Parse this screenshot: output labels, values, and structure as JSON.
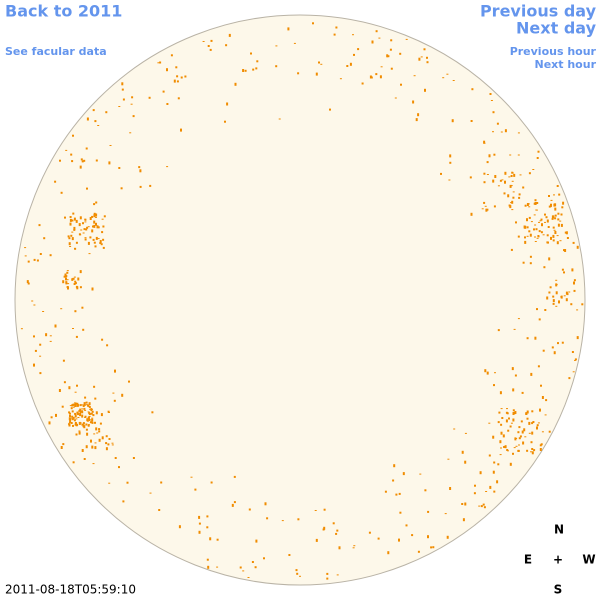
{
  "links": {
    "back": "Back to 2011",
    "facular_data": "See facular data",
    "previous_day": "Previous day",
    "next_day": "Next day",
    "previous_hour": "Previous hour",
    "next_hour": "Next hour"
  },
  "compass": {
    "north": "N",
    "east": "E",
    "center": "+",
    "west": "W",
    "south": "S"
  },
  "timestamp": "2011-08-18T05:59:10"
}
